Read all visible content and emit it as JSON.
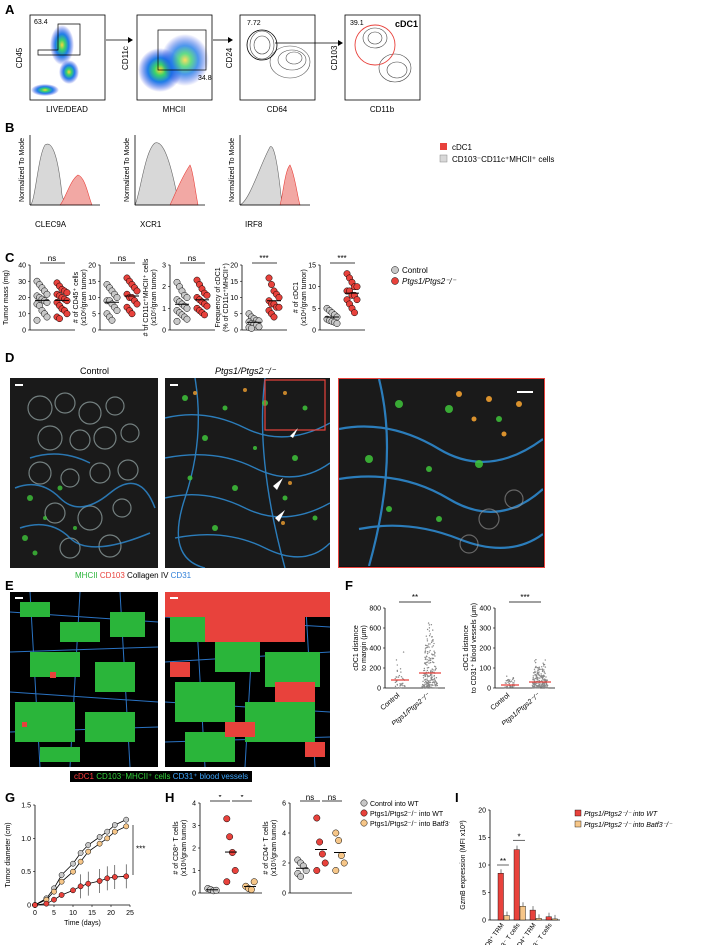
{
  "panels": {
    "A": "A",
    "B": "B",
    "C": "C",
    "D": "D",
    "E": "E",
    "F": "F",
    "G": "G",
    "H": "H",
    "I": "I"
  },
  "colors": {
    "control": "#c8c8c8",
    "ko": "#e8423c",
    "batf3": "#f6c688",
    "red": "#e8423c",
    "green": "#2ab53a",
    "blue": "#2f7fd8"
  },
  "panelA": {
    "plots": [
      {
        "y": "CD45",
        "x": "LIVE/DEAD",
        "gate": "63.4"
      },
      {
        "y": "CD11c",
        "x": "MHCII",
        "gate": "34.8"
      },
      {
        "y": "CD24",
        "x": "CD64",
        "gate": "7.72"
      },
      {
        "y": "CD103",
        "x": "CD11b",
        "gate": "39.1",
        "label": "cDC1"
      }
    ]
  },
  "panelB": {
    "ylabel": "Normalized To Mode",
    "xlabels": [
      "CLEC9A",
      "XCR1",
      "IRF8"
    ],
    "legend": [
      "cDC1",
      "CD103⁻CD11c⁺MHCII⁺ cells"
    ]
  },
  "panelC": {
    "legend": [
      "Control",
      "Ptgs1/Ptgs2⁻/⁻"
    ],
    "plots": [
      {
        "ylabel": "Tumor mass (mg)",
        "ticks": [
          "0",
          "10",
          "20",
          "30",
          "40"
        ],
        "max": 40,
        "sig": "ns",
        "ctrl": [
          30,
          28,
          26,
          24,
          22,
          21,
          20,
          19,
          18,
          17,
          16,
          15,
          12,
          10,
          8,
          6
        ],
        "ko": [
          29,
          27,
          25,
          24,
          23,
          22,
          21,
          20,
          19,
          18,
          17,
          15,
          13,
          12,
          10,
          8,
          7
        ]
      },
      {
        "ylabel": "# of CD45⁺ cells",
        "ylabel2": "(x10⁶/gram tumor)",
        "ticks": [
          "0",
          "5",
          "10",
          "15",
          "20"
        ],
        "max": 20,
        "sig": "ns",
        "ctrl": [
          14,
          13,
          12,
          11,
          10,
          9,
          9,
          8,
          7,
          6,
          5,
          4,
          3
        ],
        "ko": [
          16,
          15,
          14,
          13,
          12,
          11,
          10,
          10,
          9,
          8,
          7,
          6,
          5
        ]
      },
      {
        "ylabel": "# of CD11c⁺MHCII⁺ cells",
        "ylabel2": "(x10⁵/gram tumor)",
        "ticks": [
          "0",
          "1",
          "2",
          "3"
        ],
        "max": 3,
        "sig": "ns",
        "ctrl": [
          2.2,
          2.0,
          1.8,
          1.6,
          1.5,
          1.4,
          1.3,
          1.2,
          1.1,
          1.0,
          0.9,
          0.8,
          0.7,
          0.6,
          0.5,
          0.4
        ],
        "ko": [
          2.3,
          2.1,
          1.9,
          1.7,
          1.6,
          1.5,
          1.4,
          1.3,
          1.2,
          1.1,
          1.0,
          0.9,
          0.8,
          0.7
        ]
      },
      {
        "ylabel": "Frequency of cDC1",
        "ylabel2": "(% of CD11c⁺MHCII⁺)",
        "ticks": [
          "0",
          "5",
          "10",
          "15",
          "20"
        ],
        "max": 20,
        "sig": "***",
        "ctrl": [
          5,
          4,
          3.5,
          3,
          2.8,
          2.5,
          2,
          1.8,
          1.5,
          1,
          0.8,
          0.5
        ],
        "ko": [
          16,
          14,
          12,
          11,
          10,
          9,
          8,
          8,
          7,
          7,
          6,
          5,
          4
        ]
      },
      {
        "ylabel": "# of cDC1",
        "ylabel2": "(x10⁴/gram tumor)",
        "ticks": [
          "0",
          "5",
          "10",
          "15"
        ],
        "max": 15,
        "sig": "***",
        "ctrl": [
          5,
          4.5,
          4,
          3.5,
          3,
          2.5,
          2.2,
          2,
          1.8,
          1.5
        ],
        "ko": [
          13,
          12,
          11,
          10,
          10,
          9,
          9,
          8,
          8,
          7,
          7,
          6,
          5,
          4
        ]
      }
    ]
  },
  "panelD": {
    "title_ctrl": "Control",
    "title_ko": "Ptgs1/Ptgs2⁻/⁻",
    "legend": [
      "MHCII",
      "CD103",
      "Collagen IV",
      "CD31"
    ]
  },
  "panelE": {
    "legend": [
      "cDC1",
      "CD103⁻MHCII⁺ cells",
      "CD31⁺ blood vessels"
    ]
  },
  "panelF": {
    "plots": [
      {
        "ylabel": "cDC1 distance",
        "ylabel2": "to margin (μm)",
        "ticks": [
          "0",
          "200",
          "400",
          "600",
          "800"
        ],
        "max": 800,
        "sig": "**",
        "ctrlMean": 80,
        "koMean": 150
      },
      {
        "ylabel": "cDC1 distance",
        "ylabel2": "to CD31⁺ blood vessels (μm)",
        "ticks": [
          "0",
          "100",
          "200",
          "300",
          "400"
        ],
        "max": 400,
        "sig": "***",
        "ctrlMean": 15,
        "koMean": 30
      }
    ],
    "xlabels": [
      "Control",
      "Ptgs1/Ptgs2⁻/⁻"
    ]
  },
  "panelG": {
    "ylabel": "Tumor diameter (cm)",
    "xlabel": "Time (days)",
    "xticks": [
      "0",
      "5",
      "10",
      "15",
      "20",
      "25"
    ],
    "yticks": [
      "0",
      "0.5",
      "1.0",
      "1.5"
    ],
    "sig": "***",
    "chart_data": {
      "type": "line",
      "x": [
        0,
        3,
        5,
        7,
        10,
        12,
        14,
        17,
        19,
        21,
        24
      ],
      "series": [
        {
          "name": "Control into WT",
          "values": [
            0,
            0.1,
            0.25,
            0.45,
            0.62,
            0.78,
            0.9,
            1.02,
            1.1,
            1.2,
            1.28
          ]
        },
        {
          "name": "Ptgs1/Ptgs2⁻/⁻ into Batf3⁻/⁻",
          "values": [
            0,
            0.08,
            0.2,
            0.35,
            0.5,
            0.65,
            0.8,
            0.92,
            1.0,
            1.1,
            1.18
          ]
        },
        {
          "name": "Ptgs1/Ptgs2⁻/⁻ into WT",
          "values": [
            0,
            0.02,
            0.08,
            0.15,
            0.22,
            0.28,
            0.32,
            0.36,
            0.4,
            0.42,
            0.43
          ]
        }
      ]
    }
  },
  "panelH": {
    "legend": [
      "Control into WT",
      "Ptgs1/Ptgs2⁻/⁻ into WT",
      "Ptgs1/Ptgs2⁻/⁻ into Batf3⁻/⁻"
    ],
    "plots": [
      {
        "ylabel": "# of CD8⁺ T cells",
        "ylabel2": "(x10⁶/gram tumor)",
        "ticks": [
          "0",
          "1",
          "2",
          "3",
          "4"
        ],
        "max": 4,
        "sig1": "*",
        "sig2": "*",
        "g1": [
          0.2,
          0.15,
          0.1,
          0.12
        ],
        "g2": [
          3.3,
          2.5,
          1.8,
          1.0,
          0.5
        ],
        "g3": [
          0.3,
          0.2,
          0.15,
          0.5
        ]
      },
      {
        "ylabel": "# of CD4⁺ T cells",
        "ylabel2": "(x10⁵/gram tumor)",
        "ticks": [
          "0",
          "2",
          "4",
          "6"
        ],
        "max": 6,
        "sig1": "ns",
        "sig2": "ns",
        "g1": [
          2.2,
          2.0,
          1.8,
          1.5,
          1.3,
          1.1
        ],
        "g2": [
          5.0,
          3.4,
          2.6,
          2.0,
          1.5
        ],
        "g3": [
          4.0,
          3.5,
          2.5,
          2.0,
          1.5
        ]
      }
    ]
  },
  "panelI": {
    "ylabel": "GzmB expression (MFI x10³)",
    "yticks": [
      "0",
      "5",
      "10",
      "15",
      "20"
    ],
    "legend": [
      "Ptgs1/Ptgs2⁻/⁻ into WT",
      "Ptgs1/Ptgs2⁻/⁻ into Batf3⁻/⁻"
    ],
    "sig": [
      "**",
      "*"
    ],
    "chart_data": {
      "type": "bar",
      "categories": [
        "CD8⁺ TRM",
        "CD8⁺CD103⁻ T cells",
        "CD4⁺ TRM",
        "CD4⁺CD103⁻ T cells"
      ],
      "series": [
        {
          "name": "Ptgs1/Ptgs2⁻/⁻ into WT",
          "values": [
            8.5,
            12.8,
            1.8,
            0.6
          ]
        },
        {
          "name": "Ptgs1/Ptgs2⁻/⁻ into Batf3⁻/⁻",
          "values": [
            0.8,
            2.5,
            0.3,
            0.2
          ]
        }
      ],
      "ylim": [
        0,
        20
      ]
    }
  }
}
